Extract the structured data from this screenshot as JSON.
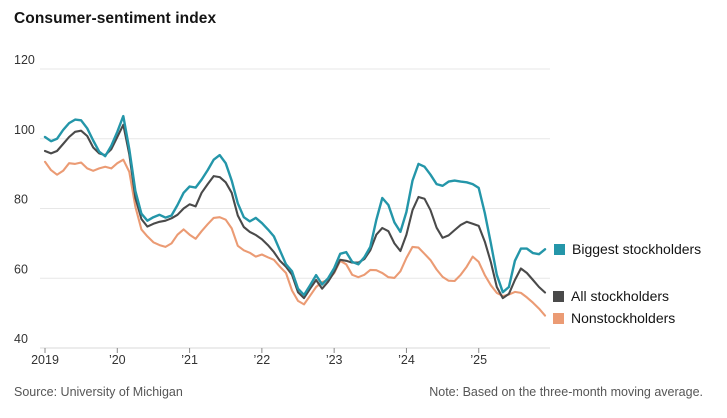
{
  "chart": {
    "title": "Consumer-sentiment index"
  },
  "footer": {
    "source": "Source: University of Michigan",
    "note": "Note: Based on the three-month moving average."
  },
  "chart_data": {
    "type": "line",
    "title": "Consumer-sentiment index",
    "xlabel": "",
    "ylabel": "",
    "ylim": [
      40,
      120
    ],
    "y_ticks": [
      40,
      60,
      80,
      100,
      120
    ],
    "grid": true,
    "legend_position": "right-of-line-ends",
    "x_start": "2019-01",
    "x_frequency": "monthly",
    "x_tick_labels": [
      "2019",
      "’20",
      "’21",
      "’22",
      "’23",
      "’24",
      "’25"
    ],
    "series": [
      {
        "name": "Biggest stockholders",
        "color": "#2496a9",
        "values": [
          100.5,
          99.3,
          100.0,
          102.5,
          104.5,
          105.5,
          105.3,
          103.0,
          99.5,
          96.3,
          95.0,
          98.0,
          102.0,
          106.5,
          97.0,
          85.0,
          78.5,
          76.5,
          77.5,
          78.2,
          77.4,
          78.0,
          81.0,
          84.5,
          86.3,
          86.0,
          88.3,
          91.0,
          94.0,
          95.3,
          93.0,
          88.0,
          81.5,
          77.5,
          76.3,
          77.3,
          75.8,
          74.0,
          72.0,
          68.0,
          64.0,
          62.0,
          57.0,
          55.2,
          58.0,
          60.9,
          58.2,
          60.0,
          62.9,
          67.0,
          67.5,
          64.7,
          64.0,
          66.0,
          69.0,
          76.7,
          83.0,
          81.0,
          76.0,
          73.3,
          79.0,
          88.0,
          92.8,
          92.0,
          89.7,
          87.0,
          86.5,
          87.7,
          88.0,
          87.7,
          87.5,
          87.0,
          85.9,
          78.7,
          70.1,
          61.0,
          56.0,
          57.5,
          65.0,
          68.5,
          68.5,
          67.2,
          66.9,
          68.3
        ]
      },
      {
        "name": "All stockholders",
        "color": "#4a4a4a",
        "values": [
          96.5,
          95.8,
          96.5,
          98.5,
          100.5,
          102.0,
          102.3,
          100.8,
          97.5,
          95.8,
          95.3,
          97.0,
          100.5,
          104.0,
          95.5,
          83.0,
          77.0,
          74.8,
          75.6,
          76.2,
          76.5,
          77.2,
          78.2,
          80.0,
          81.2,
          80.6,
          84.5,
          87.0,
          89.3,
          89.0,
          87.5,
          84.5,
          78.0,
          74.7,
          73.3,
          72.4,
          71.2,
          69.5,
          67.5,
          65.0,
          63.3,
          61.0,
          56.0,
          54.3,
          57.0,
          59.5,
          57.0,
          59.0,
          61.8,
          65.3,
          65.0,
          64.5,
          64.5,
          65.5,
          68.0,
          72.5,
          74.4,
          73.5,
          70.0,
          67.8,
          72.5,
          79.5,
          83.3,
          82.8,
          79.5,
          74.5,
          71.6,
          72.3,
          73.8,
          75.3,
          76.2,
          75.6,
          75.0,
          70.5,
          64.7,
          57.5,
          54.3,
          55.5,
          59.5,
          62.8,
          61.5,
          59.5,
          57.5,
          55.9
        ]
      },
      {
        "name": "Nonstockholders",
        "color": "#eb9b74",
        "values": [
          93.4,
          91.0,
          89.7,
          90.8,
          93.0,
          92.8,
          93.2,
          91.5,
          90.8,
          91.5,
          92.0,
          91.5,
          93.0,
          94.0,
          90.5,
          80.5,
          74.0,
          72.0,
          70.3,
          69.5,
          69.0,
          70.0,
          72.5,
          74.0,
          72.5,
          71.3,
          73.5,
          75.5,
          77.3,
          77.5,
          76.8,
          74.3,
          69.3,
          68.0,
          67.3,
          66.2,
          66.8,
          66.0,
          65.3,
          63.3,
          61.5,
          56.5,
          53.5,
          52.5,
          55.0,
          57.5,
          58.9,
          59.5,
          61.5,
          65.0,
          64.0,
          61.0,
          60.3,
          61.0,
          62.4,
          62.3,
          61.5,
          60.3,
          60.1,
          62.0,
          65.8,
          69.0,
          68.8,
          67.0,
          65.2,
          62.5,
          60.4,
          59.3,
          59.2,
          61.0,
          63.3,
          66.2,
          64.7,
          60.9,
          58.0,
          55.8,
          54.9,
          55.3,
          56.1,
          55.8,
          54.5,
          53.0,
          51.3,
          49.3
        ]
      }
    ]
  }
}
